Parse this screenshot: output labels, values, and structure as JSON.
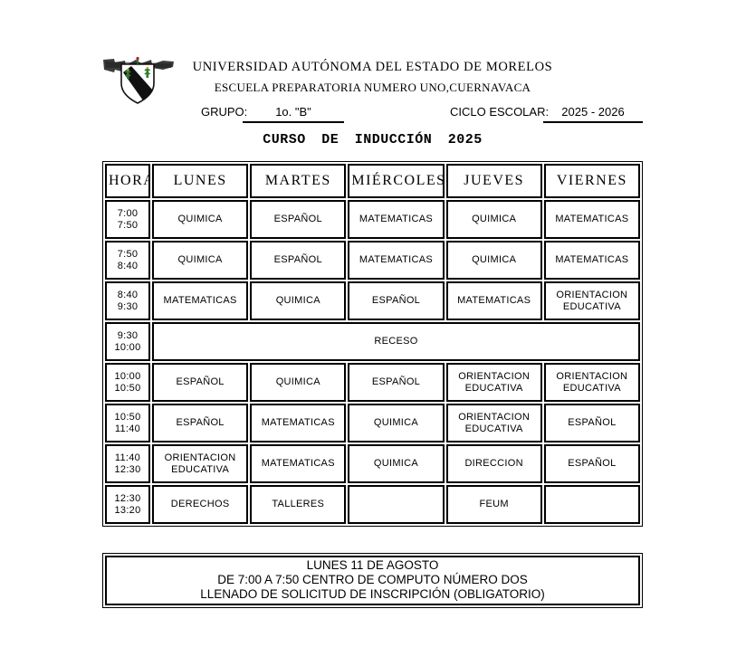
{
  "header": {
    "university": "UNIVERSIDAD AUTÓNOMA DEL ESTADO DE MORELOS",
    "school": "ESCUELA PREPARATORIA NUMERO UNO,CUERNAVACA",
    "grupo_label": "GRUPO:",
    "grupo_value": "1o. \"B\"",
    "ciclo_label": "CICLO ESCOLAR:",
    "ciclo_value": "2025 - 2026",
    "course_title": "CURSO DE INDUCCIÓN 2025",
    "logo": "uaem-crest"
  },
  "schedule": {
    "type": "table",
    "columns": [
      "HORA",
      "LUNES",
      "MARTES",
      "MIÉRCOLES",
      "JUEVES",
      "VIERNES"
    ],
    "rows": [
      {
        "start": "7:00",
        "end": "7:50",
        "subjects": [
          "QUIMICA",
          "ESPAÑOL",
          "MATEMATICAS",
          "QUIMICA",
          "MATEMATICAS"
        ]
      },
      {
        "start": "7:50",
        "end": "8:40",
        "subjects": [
          "QUIMICA",
          "ESPAÑOL",
          "MATEMATICAS",
          "QUIMICA",
          "MATEMATICAS"
        ]
      },
      {
        "start": "8:40",
        "end": "9:30",
        "subjects": [
          "MATEMATICAS",
          "QUIMICA",
          "ESPAÑOL",
          "MATEMATICAS",
          "ORIENTACION EDUCATIVA"
        ]
      },
      {
        "start": "9:30",
        "end": "10:00",
        "full_row": "RECESO"
      },
      {
        "start": "10:00",
        "end": "10:50",
        "subjects": [
          "ESPAÑOL",
          "QUIMICA",
          "ESPAÑOL",
          "ORIENTACION EDUCATIVA",
          "ORIENTACION EDUCATIVA"
        ]
      },
      {
        "start": "10:50",
        "end": "11:40",
        "subjects": [
          "ESPAÑOL",
          "MATEMATICAS",
          "QUIMICA",
          "ORIENTACION EDUCATIVA",
          "ESPAÑOL"
        ]
      },
      {
        "start": "11:40",
        "end": "12:30",
        "subjects": [
          "ORIENTACION EDUCATIVA",
          "MATEMATICAS",
          "QUIMICA",
          "DIRECCION",
          "ESPAÑOL"
        ]
      },
      {
        "start": "12:30",
        "end": "13:20",
        "subjects": [
          "DERECHOS",
          "TALLERES",
          "",
          "FEUM",
          ""
        ]
      }
    ]
  },
  "notice": {
    "lines": [
      "LUNES 11 DE AGOSTO",
      "DE 7:00 A 7:50 CENTRO DE COMPUTO NÚMERO DOS",
      "LLENADO DE SOLICITUD DE INSCRIPCIÓN (OBLIGATORIO)"
    ]
  },
  "colors": {
    "ink": "#000000",
    "paper": "#ffffff",
    "crest_green": "#2e7d32",
    "crest_red": "#b02020"
  }
}
